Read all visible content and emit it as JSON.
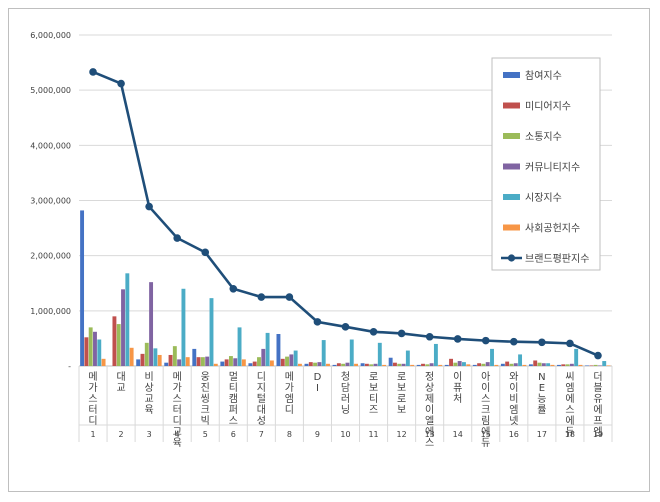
{
  "chart_data": {
    "type": "bar",
    "title": "",
    "xlabel": "",
    "ylabel": "",
    "ylim": [
      0,
      6000000
    ],
    "yticks": [
      0,
      1000000,
      2000000,
      3000000,
      4000000,
      5000000,
      6000000
    ],
    "ytick_labels": [
      "-",
      "1,000,000",
      "2,000,000",
      "3,000,000",
      "4,000,000",
      "5,000,000",
      "6,000,000"
    ],
    "rank_labels": [
      "1",
      "2",
      "3",
      "4",
      "5",
      "6",
      "7",
      "8",
      "9",
      "10",
      "11",
      "12",
      "13",
      "14",
      "15",
      "16",
      "17",
      "18",
      "19"
    ],
    "categories": [
      "메가스터디",
      "대교",
      "비상교육",
      "메가스터디교육",
      "웅진씽크빅",
      "멀티캠퍼스",
      "디지털대성",
      "메가엠디",
      "DI",
      "청담러닝",
      "로보티즈",
      "로보로보",
      "정상제이엘에스",
      "이퓨처",
      "아이스크림에듀",
      "와이비엠넷",
      "NE능률",
      "씨엠에스에듀",
      "더블유에프엠"
    ],
    "series": [
      {
        "name": "참여지수",
        "color": "#4472c4",
        "values": [
          2820000,
          0,
          120000,
          60000,
          310000,
          80000,
          50000,
          580000,
          40000,
          20000,
          50000,
          150000,
          20000,
          20000,
          20000,
          40000,
          30000,
          20000,
          10000
        ]
      },
      {
        "name": "미디어지수",
        "color": "#c0504d",
        "values": [
          520000,
          900000,
          220000,
          200000,
          160000,
          120000,
          80000,
          130000,
          70000,
          50000,
          40000,
          60000,
          40000,
          130000,
          50000,
          80000,
          100000,
          30000,
          10000
        ]
      },
      {
        "name": "소통지수",
        "color": "#9bbb59",
        "values": [
          700000,
          760000,
          420000,
          360000,
          160000,
          180000,
          160000,
          170000,
          60000,
          40000,
          30000,
          40000,
          30000,
          60000,
          40000,
          40000,
          60000,
          30000,
          20000
        ]
      },
      {
        "name": "커뮤니티지수",
        "color": "#8064a2",
        "values": [
          620000,
          1390000,
          1520000,
          120000,
          170000,
          140000,
          310000,
          210000,
          70000,
          60000,
          40000,
          40000,
          50000,
          90000,
          70000,
          50000,
          50000,
          40000,
          10000
        ]
      },
      {
        "name": "시장지수",
        "color": "#4bacc6",
        "values": [
          480000,
          1680000,
          320000,
          1400000,
          1230000,
          700000,
          600000,
          280000,
          470000,
          480000,
          420000,
          280000,
          400000,
          70000,
          310000,
          210000,
          50000,
          310000,
          90000
        ]
      },
      {
        "name": "사회공헌지수",
        "color": "#f79646",
        "values": [
          130000,
          330000,
          200000,
          160000,
          40000,
          120000,
          100000,
          40000,
          40000,
          40000,
          20000,
          20000,
          20000,
          30000,
          20000,
          20000,
          20000,
          20000,
          10000
        ]
      }
    ],
    "line_series": {
      "name": "브랜드평판지수",
      "color": "#1f4e79",
      "values": [
        5330000,
        5120000,
        2890000,
        2320000,
        2060000,
        1400000,
        1250000,
        1250000,
        800000,
        710000,
        620000,
        590000,
        530000,
        490000,
        460000,
        440000,
        430000,
        410000,
        190000
      ]
    },
    "legend_position": "right"
  }
}
